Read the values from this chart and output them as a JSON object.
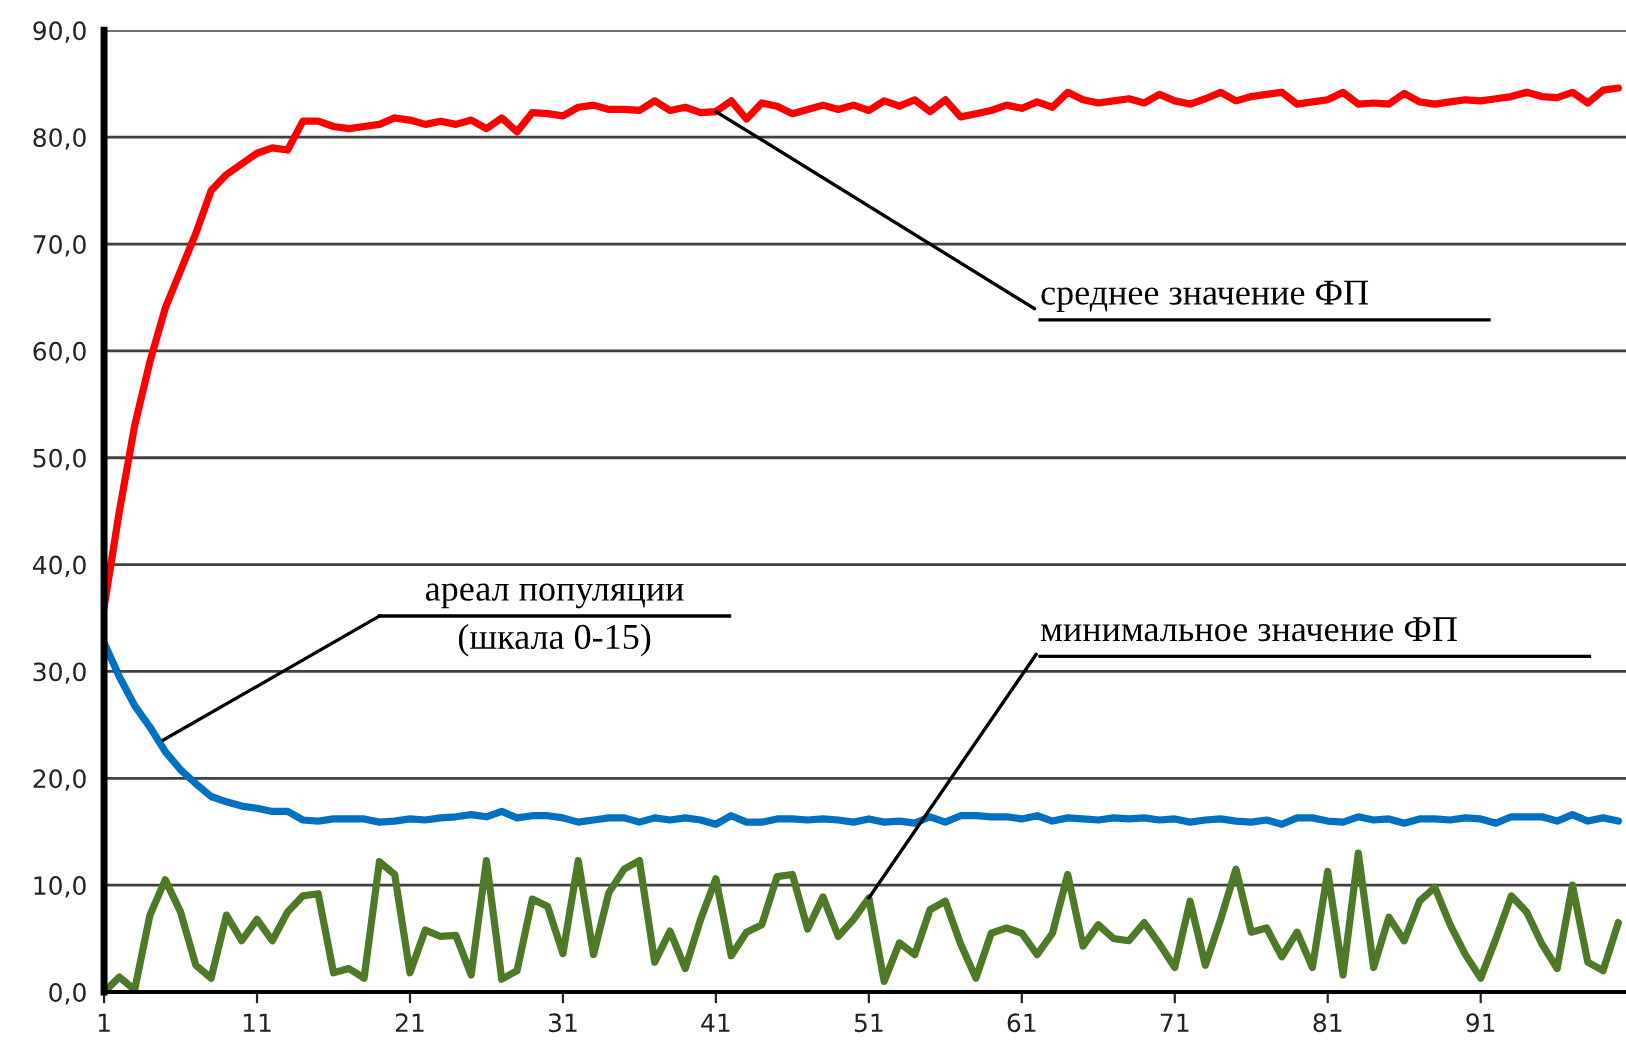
{
  "chart_data": {
    "type": "line",
    "categories": [
      "1",
      null,
      null,
      null,
      null,
      null,
      null,
      null,
      null,
      null,
      "11",
      null,
      null,
      null,
      null,
      null,
      null,
      null,
      null,
      null,
      "21",
      null,
      null,
      null,
      null,
      null,
      null,
      null,
      null,
      null,
      "31",
      null,
      null,
      null,
      null,
      null,
      null,
      null,
      null,
      null,
      "41",
      null,
      null,
      null,
      null,
      null,
      null,
      null,
      null,
      null,
      "51",
      null,
      null,
      null,
      null,
      null,
      null,
      null,
      null,
      null,
      "61",
      null,
      null,
      null,
      null,
      null,
      null,
      null,
      null,
      null,
      "71",
      null,
      null,
      null,
      null,
      null,
      null,
      null,
      null,
      null,
      "81",
      null,
      null,
      null,
      null,
      null,
      null,
      null,
      null,
      null,
      "91",
      null,
      null,
      null,
      null,
      null,
      null,
      null,
      null,
      null
    ],
    "series": [
      {
        "color": "#ff0000",
        "values": [
          36,
          45,
          53,
          59,
          64,
          67.5,
          71,
          75,
          76.5,
          77.5,
          78.5,
          79,
          78.8,
          81.5,
          81.5,
          81,
          80.8,
          81,
          81.2,
          81.8,
          81.6,
          81.2,
          81.5,
          81.2,
          81.6,
          80.8,
          81.8,
          80.5,
          82.3,
          82.2,
          82,
          82.8,
          83,
          82.6,
          82.6,
          82.5,
          83.4,
          82.5,
          82.8,
          82.3,
          82.4,
          83.4,
          81.7,
          83.2,
          82.9,
          82.2,
          82.6,
          83,
          82.6,
          83,
          82.5,
          83.4,
          82.9,
          83.5,
          82.4,
          83.5,
          81.9,
          82.2,
          82.5,
          83,
          82.7,
          83.3,
          82.8,
          84.2,
          83.5,
          83.2,
          83.4,
          83.6,
          83.2,
          84,
          83.4,
          83.1,
          83.6,
          84.2,
          83.4,
          83.8,
          84,
          84.2,
          83.1,
          83.3,
          83.5,
          84.2,
          83.1,
          83.2,
          83.1,
          84.1,
          83.3,
          83.1,
          83.3,
          83.5,
          83.4,
          83.6,
          83.8,
          84.2,
          83.8,
          83.7,
          84.2,
          83.2,
          84.4,
          84.6
        ]
      },
      {
        "color": "#0070c0",
        "values": [
          32.7,
          29.5,
          26.8,
          24.8,
          22.5,
          20.8,
          19.5,
          18.3,
          17.8,
          17.4,
          17.2,
          16.9,
          16.9,
          16.1,
          16,
          16.2,
          16.2,
          16.2,
          15.9,
          16,
          16.2,
          16.1,
          16.3,
          16.4,
          16.6,
          16.4,
          16.9,
          16.3,
          16.5,
          16.5,
          16.3,
          15.9,
          16.1,
          16.3,
          16.3,
          15.9,
          16.3,
          16.1,
          16.3,
          16.1,
          15.7,
          16.5,
          15.9,
          15.9,
          16.2,
          16.2,
          16.1,
          16.2,
          16.1,
          15.9,
          16.2,
          15.9,
          16,
          15.8,
          16.4,
          15.9,
          16.5,
          16.5,
          16.4,
          16.4,
          16.2,
          16.5,
          16,
          16.3,
          16.2,
          16.1,
          16.3,
          16.2,
          16.3,
          16.1,
          16.2,
          15.9,
          16.1,
          16.2,
          16,
          15.9,
          16.1,
          15.7,
          16.3,
          16.3,
          16,
          15.9,
          16.4,
          16.1,
          16.2,
          15.8,
          16.2,
          16.2,
          16.1,
          16.3,
          16.2,
          15.8,
          16.4,
          16.4,
          16.4,
          16,
          16.6,
          16,
          16.3,
          16
        ]
      },
      {
        "color": "#4e7a27",
        "values": [
          0,
          1.4,
          0.2,
          7.2,
          10.5,
          7.5,
          2.5,
          1.3,
          7.2,
          4.8,
          6.8,
          4.8,
          7.5,
          9,
          9.2,
          1.8,
          2.2,
          1.3,
          12.2,
          11,
          1.8,
          5.8,
          5.2,
          5.3,
          1.6,
          12.3,
          1.2,
          2,
          8.7,
          8,
          3.6,
          12.3,
          3.5,
          9.3,
          11.5,
          12.3,
          2.8,
          5.7,
          2.2,
          6.8,
          10.6,
          3.4,
          5.6,
          6.3,
          10.8,
          11,
          5.9,
          8.9,
          5.2,
          6.8,
          8.8,
          1,
          4.6,
          3.5,
          7.7,
          8.5,
          4.5,
          1.3,
          5.5,
          6,
          5.5,
          3.5,
          5.5,
          11,
          4.3,
          6.3,
          5,
          4.8,
          6.5,
          4.5,
          2.3,
          8.5,
          2.5,
          6.8,
          11.5,
          5.6,
          6,
          3.3,
          5.6,
          2.3,
          11.3,
          1.6,
          13,
          2.3,
          7,
          4.8,
          8.5,
          9.8,
          6.3,
          3.5,
          1.3,
          5,
          9,
          7.5,
          4.5,
          2.2,
          10,
          2.8,
          2,
          6.5
        ]
      }
    ],
    "ylim": [
      0,
      90
    ],
    "yticks": [
      {
        "value": 0,
        "label": "0,0"
      },
      {
        "value": 10,
        "label": "10,0"
      },
      {
        "value": 20,
        "label": "20,0"
      },
      {
        "value": 30,
        "label": "30,0"
      },
      {
        "value": 40,
        "label": "40,0"
      },
      {
        "value": 50,
        "label": "50,0"
      },
      {
        "value": 60,
        "label": "60,0"
      },
      {
        "value": 70,
        "label": "70,0"
      },
      {
        "value": 80,
        "label": "80,0"
      },
      {
        "value": 90,
        "label": "90,0"
      }
    ],
    "grid": "y",
    "marker": "none",
    "line_style": "solid",
    "annotations": [
      {
        "text": "среднее значение ФП",
        "x": "41",
        "y": 82.4
      },
      "ареал популяции\n(шкала 0-15)",
      {
        "text": "минимальное значение ФП",
        "x": "51",
        "y": 8.8
      }
    ]
  }
}
